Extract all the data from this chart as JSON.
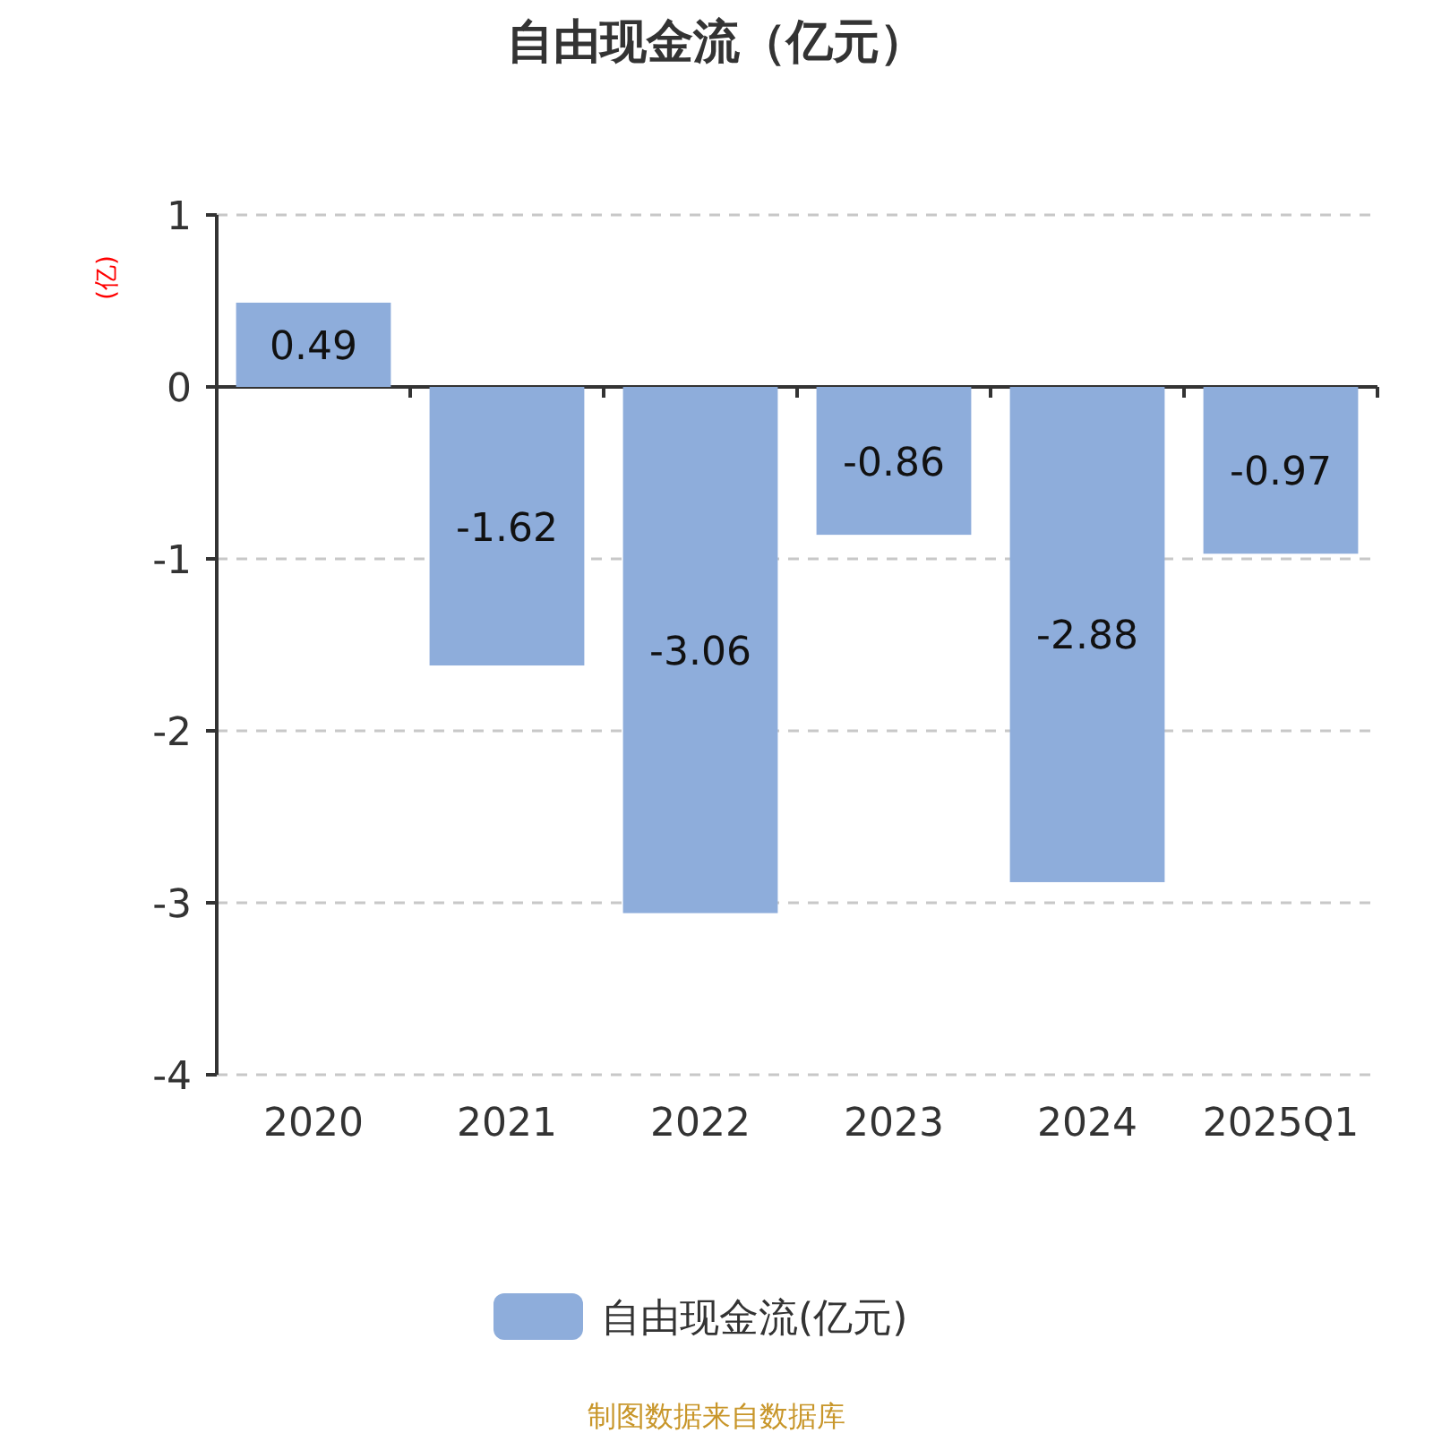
{
  "chart_data": {
    "type": "bar",
    "title": "自由现金流（亿元）",
    "ylabel": "(亿)",
    "categories": [
      "2020",
      "2021",
      "2022",
      "2023",
      "2024",
      "2025Q1"
    ],
    "series": [
      {
        "name": "自由现金流(亿元)",
        "color": "#8eaddb",
        "values": [
          0.49,
          -1.62,
          -3.06,
          -0.86,
          -2.88,
          -0.97
        ]
      }
    ],
    "ylim": [
      -4,
      1
    ],
    "yticks": [
      -4,
      -3,
      -2,
      -1,
      0,
      1
    ],
    "grid": "y",
    "legend": "bottom",
    "data_labels": true,
    "annotations": [
      "制图数据来自数据库"
    ]
  }
}
